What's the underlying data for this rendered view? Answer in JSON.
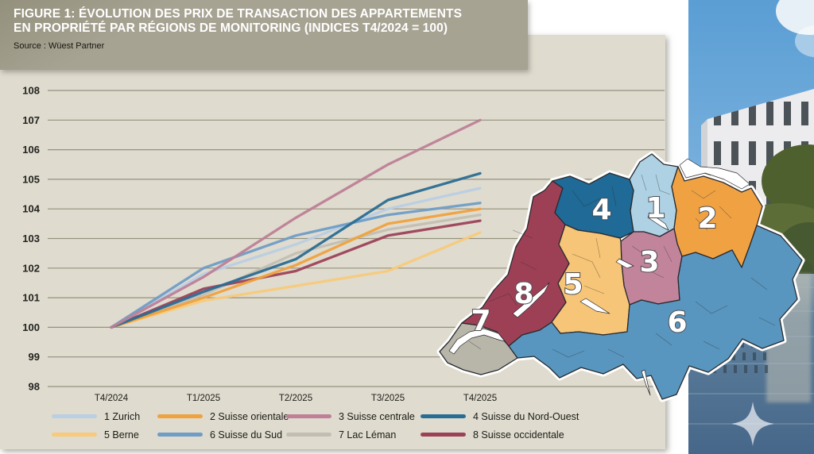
{
  "header": {
    "title_line1": "FIGURE 1: ÉVOLUTION DES PRIX DE TRANSACTION DES APPARTEMENTS",
    "title_line2": "EN PROPRIÉTÉ PAR RÉGIONS DE MONITORING (INDICES T4/2024 = 100)",
    "source": "Source : Wüest Partner"
  },
  "chart_data": {
    "type": "line",
    "title": "Évolution des prix de transaction des appartements en propriété par régions de monitoring",
    "subtitle": "Indices T4/2024 = 100",
    "x_categories": [
      "T4/2024",
      "T1/2025",
      "T2/2025",
      "T3/2025",
      "T4/2025"
    ],
    "ylim": [
      98,
      108
    ],
    "yticks": [
      98,
      99,
      100,
      101,
      102,
      103,
      104,
      105,
      106,
      107,
      108
    ],
    "grid": "horizontal",
    "legend_position": "bottom",
    "series": [
      {
        "name": "1 Zurich",
        "color": "#b9cfe3",
        "values": [
          100,
          101.8,
          102.8,
          104.0,
          104.7
        ]
      },
      {
        "name": "2 Suisse orientale",
        "color": "#efa23d",
        "values": [
          100,
          101.0,
          102.1,
          103.5,
          104.0
        ]
      },
      {
        "name": "3 Suisse centrale",
        "color": "#be7f97",
        "values": [
          100,
          101.7,
          103.7,
          105.5,
          107.0
        ]
      },
      {
        "name": "4 Suisse du Nord-Ouest",
        "color": "#2a6d94",
        "values": [
          100,
          101.2,
          102.3,
          104.3,
          105.2
        ]
      },
      {
        "name": "5 Berne",
        "color": "#f8ca79",
        "values": [
          100,
          100.9,
          101.4,
          101.9,
          103.2
        ]
      },
      {
        "name": "6 Suisse du Sud",
        "color": "#6f9dc6",
        "values": [
          100,
          102.0,
          103.1,
          103.8,
          104.2
        ]
      },
      {
        "name": "7 Lac Léman",
        "color": "#c2bfb2",
        "values": [
          100,
          101.1,
          102.5,
          103.3,
          103.8
        ]
      },
      {
        "name": "8 Suisse occidentale",
        "color": "#9c4258",
        "values": [
          100,
          101.3,
          101.9,
          103.1,
          103.6
        ]
      }
    ]
  },
  "map": {
    "regions": [
      {
        "num": "1",
        "name": "Zurich",
        "color": "#aed1e4"
      },
      {
        "num": "2",
        "name": "Suisse orientale",
        "color": "#f0a243"
      },
      {
        "num": "3",
        "name": "Suisse centrale",
        "color": "#c2849b"
      },
      {
        "num": "4",
        "name": "Suisse du Nord-Ouest",
        "color": "#1f6a96"
      },
      {
        "num": "5",
        "name": "Berne",
        "color": "#f6c577"
      },
      {
        "num": "6",
        "name": "Suisse du Sud",
        "color": "#5896bf"
      },
      {
        "num": "7",
        "name": "Lac Léman",
        "color": "#b8b5a9"
      },
      {
        "num": "8",
        "name": "Suisse occidentale",
        "color": "#9d4056"
      }
    ]
  },
  "colors": {
    "panel_bg": "#dfdbce",
    "titlebar_bg": "#a7a393",
    "gridline": "#95927f",
    "axis_text": "#232320"
  }
}
